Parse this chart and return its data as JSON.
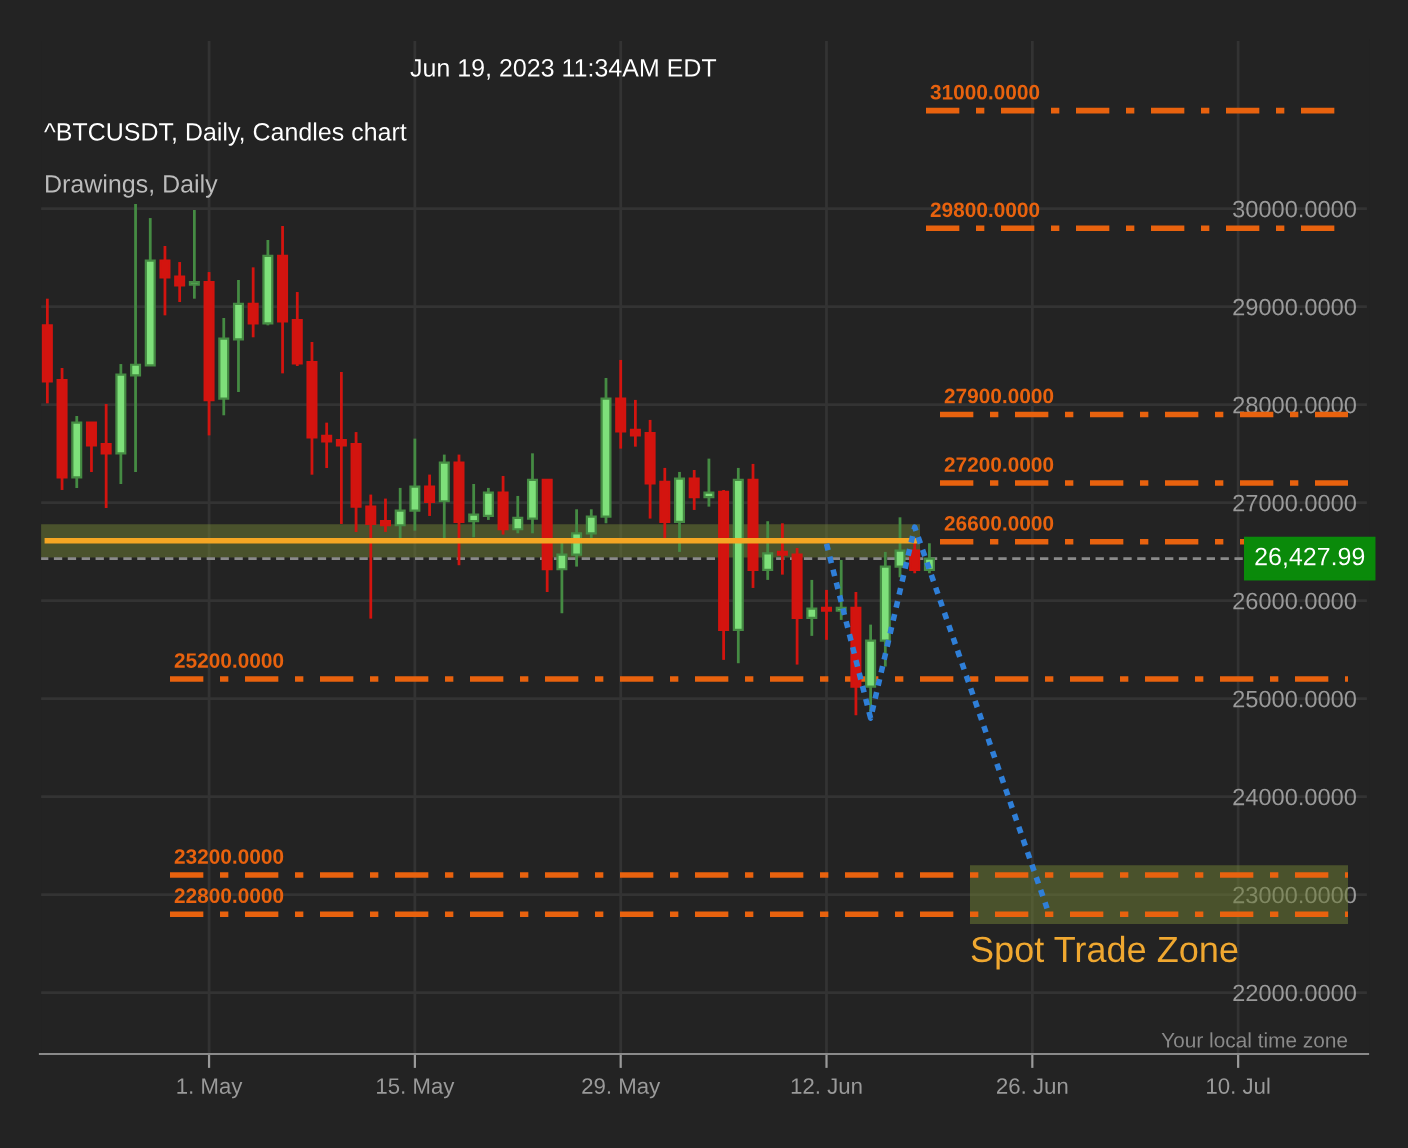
{
  "chart_data": {
    "type": "candlestick",
    "title": "^BTCUSDT, Daily, Candles chart",
    "subtitle": "Jun 19, 2023 11:34AM EDT",
    "annotations": [
      "Drawings, Daily",
      "Your local time zone"
    ],
    "x": [
      "2023-04-20",
      "2023-04-21",
      "2023-04-22",
      "2023-04-23",
      "2023-04-24",
      "2023-04-25",
      "2023-04-26",
      "2023-04-27",
      "2023-04-28",
      "2023-04-29",
      "2023-04-30",
      "2023-05-01",
      "2023-05-02",
      "2023-05-03",
      "2023-05-04",
      "2023-05-05",
      "2023-05-06",
      "2023-05-07",
      "2023-05-08",
      "2023-05-09",
      "2023-05-10",
      "2023-05-11",
      "2023-05-12",
      "2023-05-13",
      "2023-05-14",
      "2023-05-15",
      "2023-05-16",
      "2023-05-17",
      "2023-05-18",
      "2023-05-19",
      "2023-05-20",
      "2023-05-21",
      "2023-05-22",
      "2023-05-23",
      "2023-05-24",
      "2023-05-25",
      "2023-05-26",
      "2023-05-27",
      "2023-05-28",
      "2023-05-29",
      "2023-05-30",
      "2023-05-31",
      "2023-06-01",
      "2023-06-02",
      "2023-06-03",
      "2023-06-04",
      "2023-06-05",
      "2023-06-06",
      "2023-06-07",
      "2023-06-08",
      "2023-06-09",
      "2023-06-10",
      "2023-06-11",
      "2023-06-12",
      "2023-06-13",
      "2023-06-14",
      "2023-06-15",
      "2023-06-16",
      "2023-06-17",
      "2023-06-18",
      "2023-06-19"
    ],
    "ohlc": [
      [
        28809,
        29081,
        28013,
        28238
      ],
      [
        28251,
        28374,
        27129,
        27258
      ],
      [
        27258,
        27884,
        27149,
        27816
      ],
      [
        27816,
        27816,
        27312,
        27584
      ],
      [
        27598,
        28006,
        26945,
        27503
      ],
      [
        27503,
        28414,
        27190,
        28306
      ],
      [
        28299,
        30047,
        27312,
        28407
      ],
      [
        28401,
        29904,
        28401,
        29469
      ],
      [
        29469,
        29619,
        28911,
        29299
      ],
      [
        29306,
        29455,
        29047,
        29217
      ],
      [
        29224,
        29986,
        29081,
        29251
      ],
      [
        29251,
        29353,
        27686,
        28047
      ],
      [
        28061,
        28884,
        27891,
        28673
      ],
      [
        28666,
        29272,
        28129,
        29027
      ],
      [
        29027,
        29401,
        28687,
        28829
      ],
      [
        28829,
        29680,
        28809,
        29517
      ],
      [
        29517,
        29823,
        28319,
        28850
      ],
      [
        28863,
        29149,
        28394,
        28421
      ],
      [
        28435,
        28639,
        27285,
        27666
      ],
      [
        27680,
        27816,
        27353,
        27625
      ],
      [
        27639,
        28333,
        26782,
        27584
      ],
      [
        27598,
        27720,
        26700,
        26959
      ],
      [
        26959,
        27082,
        25816,
        26782
      ],
      [
        26810,
        27041,
        26701,
        26769
      ],
      [
        26769,
        27150,
        26619,
        26918
      ],
      [
        26918,
        27653,
        26714,
        27163
      ],
      [
        27163,
        27286,
        26864,
        27007
      ],
      [
        27014,
        27490,
        26619,
        27408
      ],
      [
        27408,
        27490,
        26361,
        26803
      ],
      [
        26810,
        27190,
        26646,
        26878
      ],
      [
        26864,
        27150,
        26823,
        27102
      ],
      [
        27102,
        27272,
        26674,
        26728
      ],
      [
        26728,
        27068,
        26687,
        26844
      ],
      [
        26837,
        27503,
        26687,
        27231
      ],
      [
        27231,
        27231,
        26088,
        26320
      ],
      [
        26320,
        26619,
        25871,
        26469
      ],
      [
        26469,
        26932,
        26347,
        26687
      ],
      [
        26687,
        26932,
        26619,
        26857
      ],
      [
        26857,
        28272,
        26789,
        28061
      ],
      [
        28061,
        28456,
        27551,
        27728
      ],
      [
        27742,
        28048,
        27571,
        27687
      ],
      [
        27708,
        27844,
        26837,
        27197
      ],
      [
        27211,
        27354,
        26619,
        26803
      ],
      [
        26803,
        27313,
        26497,
        27245
      ],
      [
        27245,
        27333,
        26925,
        27055
      ],
      [
        27055,
        27449,
        26959,
        27102
      ],
      [
        27109,
        27129,
        25395,
        25701
      ],
      [
        25701,
        27354,
        25361,
        27231
      ],
      [
        27231,
        27395,
        26129,
        26313
      ],
      [
        26313,
        26810,
        26211,
        26483
      ],
      [
        26497,
        26789,
        26265,
        26469
      ],
      [
        26469,
        26537,
        25347,
        25823
      ],
      [
        25823,
        26211,
        25640,
        25918
      ],
      [
        25925,
        26109,
        25599,
        25898
      ],
      [
        25898,
        26415,
        25803,
        25925
      ],
      [
        25925,
        26088,
        24830,
        25122
      ],
      [
        25122,
        25755,
        24850,
        25592
      ],
      [
        25592,
        26497,
        25327,
        26347
      ],
      [
        26347,
        26850,
        26238,
        26510
      ],
      [
        26510,
        26619,
        26279,
        26313
      ],
      [
        26313,
        26585,
        26279,
        26428
      ]
    ],
    "colors": [
      "#d3140f",
      "#d3140f",
      "#7ee07a",
      "#d3140f",
      "#d3140f",
      "#7ee07a",
      "#7ee07a",
      "#7ee07a",
      "#d3140f",
      "#d3140f",
      "#7ee07a",
      "#d3140f",
      "#7ee07a",
      "#7ee07a",
      "#d3140f",
      "#7ee07a",
      "#d3140f",
      "#d3140f",
      "#d3140f",
      "#d3140f",
      "#d3140f",
      "#d3140f",
      "#d3140f",
      "#d3140f",
      "#7ee07a",
      "#7ee07a",
      "#d3140f",
      "#7ee07a",
      "#d3140f",
      "#7ee07a",
      "#7ee07a",
      "#d3140f",
      "#7ee07a",
      "#7ee07a",
      "#d3140f",
      "#7ee07a",
      "#7ee07a",
      "#7ee07a",
      "#7ee07a",
      "#d3140f",
      "#d3140f",
      "#d3140f",
      "#d3140f",
      "#7ee07a",
      "#d3140f",
      "#7ee07a",
      "#d3140f",
      "#7ee07a",
      "#d3140f",
      "#7ee07a",
      "#d3140f",
      "#d3140f",
      "#7ee07a",
      "#d3140f",
      "#7ee07a",
      "#d3140f",
      "#7ee07a",
      "#7ee07a",
      "#7ee07a",
      "#d3140f",
      "#7ee07a"
    ],
    "series": [
      {
        "type": "line",
        "color": "#f5a623",
        "line_style": "solid",
        "x": [
          "2023-04-20",
          "2023-06-18"
        ],
        "values": [
          26610,
          26610
        ]
      },
      {
        "type": "line",
        "color": "#2f7fd8",
        "line_style": "dotted",
        "x": [
          "2023-06-12",
          "2023-06-15",
          "2023-06-18",
          "2023-06-27"
        ],
        "values": [
          26580,
          24800,
          26750,
          22860
        ]
      }
    ],
    "ref_lines": [
      {
        "axis": "y",
        "value": 31000,
        "label": "31000.0000",
        "color": "#e8620e",
        "line_style": "dashdot"
      },
      {
        "axis": "y",
        "value": 29800,
        "label": "29800.0000",
        "color": "#e8620e",
        "line_style": "dashdot"
      },
      {
        "axis": "y",
        "value": 27900,
        "label": "27900.0000",
        "color": "#e8620e",
        "line_style": "dashdot"
      },
      {
        "axis": "y",
        "value": 27200,
        "label": "27200.0000",
        "color": "#e8620e",
        "line_style": "dashdot"
      },
      {
        "axis": "y",
        "value": 26600,
        "label": "26600.0000",
        "color": "#e8620e",
        "line_style": "dashdot"
      },
      {
        "axis": "y",
        "value": 25200,
        "label": "25200.0000",
        "color": "#e8620e",
        "line_style": "dashdot"
      },
      {
        "axis": "y",
        "value": 23200,
        "label": "23200.0000",
        "color": "#e8620e",
        "line_style": "dashdot"
      },
      {
        "axis": "y",
        "value": 22800,
        "label": "22800.0000",
        "color": "#e8620e",
        "line_style": "dashdot"
      },
      {
        "axis": "y",
        "value": 26427.99,
        "label": "26,427.99",
        "color": "#8a8a8a",
        "line_style": "dashed"
      }
    ],
    "bands": [
      {
        "axis": "y",
        "from": 26440,
        "to": 26780,
        "color": "#6b7a35"
      },
      {
        "axis": "y",
        "from": 22700,
        "to": 23300,
        "label": "Spot Trade Zone",
        "color": "#6b7a35"
      }
    ],
    "xlim": [
      "2023-04-19T12:00",
      "2023-07-18T20:00"
    ],
    "xticks": [
      {
        "value": "2023-05-01",
        "label": "1. May"
      },
      {
        "value": "2023-05-15",
        "label": "15. May"
      },
      {
        "value": "2023-05-29",
        "label": "29. May"
      },
      {
        "value": "2023-06-12",
        "label": "12. Jun"
      },
      {
        "value": "2023-06-26",
        "label": "26. Jun"
      },
      {
        "value": "2023-07-10",
        "label": "10. Jul"
      }
    ],
    "ylim": [
      21373,
      31721
    ],
    "yticks": [
      {
        "value": 22000,
        "label": "22000.0000"
      },
      {
        "value": 23000,
        "label": "23000.0000"
      },
      {
        "value": 24000,
        "label": "24000.0000"
      },
      {
        "value": 25000,
        "label": "25000.0000"
      },
      {
        "value": 26000,
        "label": "26000.0000"
      },
      {
        "value": 27000,
        "label": "27000.0000"
      },
      {
        "value": 28000,
        "label": "28000.0000"
      },
      {
        "value": 29000,
        "label": "29000.0000"
      },
      {
        "value": 30000,
        "label": "30000.0000"
      }
    ],
    "grid": true,
    "legend": false
  }
}
